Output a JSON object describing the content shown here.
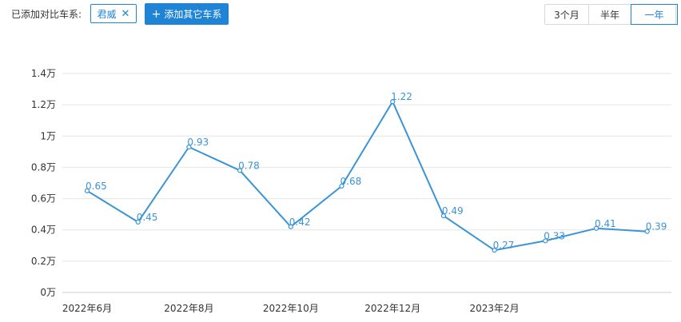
{
  "toolbar": {
    "added_label": "已添加对比车系:",
    "chip_label": "君威",
    "chip_close": "✕",
    "add_button_plus": "+",
    "add_button_label": "添加其它车系",
    "ranges": [
      "3个月",
      "半年",
      "一年"
    ],
    "active_range": "一年"
  },
  "colors": {
    "accent": "#1f84d6",
    "line": "#3a94d6",
    "grid": "#e6e6e6"
  },
  "chart_data": {
    "type": "line",
    "title": "",
    "xlabel": "",
    "ylabel": "",
    "x": [
      "2022年6月",
      "2022年7月",
      "2022年8月",
      "2022年9月",
      "2022年10月",
      "2022年11月",
      "2022年12月",
      "2023年1月",
      "2023年2月",
      "2023年3月",
      "2023年4月",
      "2023年5月"
    ],
    "x_tick_labels": [
      "2022年6月",
      "",
      "2022年8月",
      "",
      "2022年10月",
      "",
      "2022年12月",
      "",
      "2023年2月",
      "",
      "",
      ""
    ],
    "y_ticks": [
      "0万",
      "0.2万",
      "0.4万",
      "0.6万",
      "0.8万",
      "1万",
      "1.2万",
      "1.4万"
    ],
    "ylim": [
      0,
      1.4
    ],
    "grid": true,
    "series": [
      {
        "values": [
          0.65,
          0.45,
          0.93,
          0.78,
          0.42,
          0.68,
          1.22,
          0.49,
          0.27,
          0.33,
          0.41,
          0.39
        ],
        "labels": [
          "0.65",
          "0.45",
          "0.93",
          "0.78",
          "0.42",
          "0.68",
          "1.22",
          "0.49",
          "0.27",
          "0.33",
          "0.41",
          "0.39"
        ]
      }
    ]
  }
}
